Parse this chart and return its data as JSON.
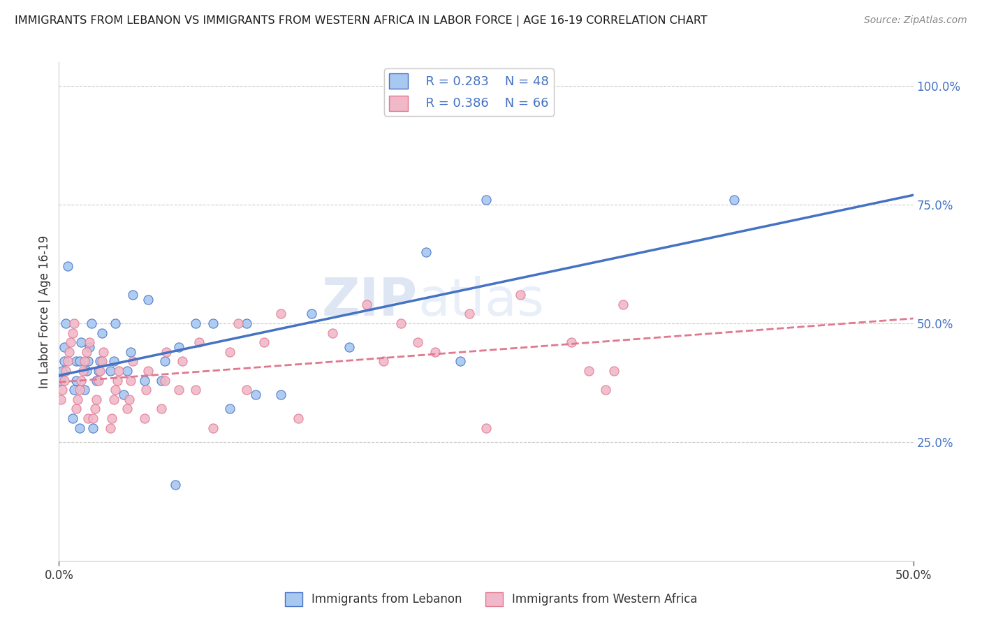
{
  "title": "IMMIGRANTS FROM LEBANON VS IMMIGRANTS FROM WESTERN AFRICA IN LABOR FORCE | AGE 16-19 CORRELATION CHART",
  "source": "Source: ZipAtlas.com",
  "ylabel": "In Labor Force | Age 16-19",
  "xmin": 0.0,
  "xmax": 0.5,
  "ymin": 0.0,
  "ymax": 1.05,
  "yticks": [
    0.25,
    0.5,
    0.75,
    1.0
  ],
  "ytick_labels": [
    "25.0%",
    "50.0%",
    "75.0%",
    "100.0%"
  ],
  "xtick_labels": [
    "0.0%",
    "50.0%"
  ],
  "watermark_zip": "ZIP",
  "watermark_atlas": "atlas",
  "legend_r1": "R = 0.283",
  "legend_n1": "N = 48",
  "legend_r2": "R = 0.386",
  "legend_n2": "N = 66",
  "color_lebanon": "#a8c8f0",
  "color_west_africa": "#f0b8c8",
  "color_line_lebanon": "#4472c4",
  "color_line_west_africa": "#e07890",
  "color_text_blue": "#4472c4",
  "color_text_dark": "#333333",
  "lebanon_x": [
    0.001,
    0.002,
    0.003,
    0.003,
    0.004,
    0.005,
    0.008,
    0.009,
    0.01,
    0.01,
    0.012,
    0.012,
    0.013,
    0.015,
    0.016,
    0.017,
    0.018,
    0.019,
    0.02,
    0.022,
    0.023,
    0.024,
    0.025,
    0.03,
    0.032,
    0.033,
    0.038,
    0.04,
    0.042,
    0.043,
    0.05,
    0.052,
    0.06,
    0.062,
    0.068,
    0.07,
    0.08,
    0.09,
    0.1,
    0.11,
    0.115,
    0.13,
    0.148,
    0.17,
    0.215,
    0.235,
    0.25,
    0.395
  ],
  "lebanon_y": [
    0.38,
    0.4,
    0.42,
    0.45,
    0.5,
    0.62,
    0.3,
    0.36,
    0.38,
    0.42,
    0.28,
    0.42,
    0.46,
    0.36,
    0.4,
    0.42,
    0.45,
    0.5,
    0.28,
    0.38,
    0.4,
    0.42,
    0.48,
    0.4,
    0.42,
    0.5,
    0.35,
    0.4,
    0.44,
    0.56,
    0.38,
    0.55,
    0.38,
    0.42,
    0.16,
    0.45,
    0.5,
    0.5,
    0.32,
    0.5,
    0.35,
    0.35,
    0.52,
    0.45,
    0.65,
    0.42,
    0.76,
    0.76
  ],
  "west_africa_x": [
    0.001,
    0.002,
    0.003,
    0.004,
    0.005,
    0.006,
    0.007,
    0.008,
    0.009,
    0.01,
    0.011,
    0.012,
    0.013,
    0.014,
    0.015,
    0.016,
    0.017,
    0.018,
    0.02,
    0.021,
    0.022,
    0.023,
    0.024,
    0.025,
    0.026,
    0.03,
    0.031,
    0.032,
    0.033,
    0.034,
    0.035,
    0.04,
    0.041,
    0.042,
    0.043,
    0.05,
    0.051,
    0.052,
    0.06,
    0.062,
    0.063,
    0.07,
    0.072,
    0.08,
    0.082,
    0.09,
    0.1,
    0.105,
    0.11,
    0.12,
    0.13,
    0.14,
    0.16,
    0.18,
    0.19,
    0.2,
    0.21,
    0.22,
    0.24,
    0.25,
    0.27,
    0.3,
    0.31,
    0.32,
    0.325,
    0.33
  ],
  "west_africa_y": [
    0.34,
    0.36,
    0.38,
    0.4,
    0.42,
    0.44,
    0.46,
    0.48,
    0.5,
    0.32,
    0.34,
    0.36,
    0.38,
    0.4,
    0.42,
    0.44,
    0.3,
    0.46,
    0.3,
    0.32,
    0.34,
    0.38,
    0.4,
    0.42,
    0.44,
    0.28,
    0.3,
    0.34,
    0.36,
    0.38,
    0.4,
    0.32,
    0.34,
    0.38,
    0.42,
    0.3,
    0.36,
    0.4,
    0.32,
    0.38,
    0.44,
    0.36,
    0.42,
    0.36,
    0.46,
    0.28,
    0.44,
    0.5,
    0.36,
    0.46,
    0.52,
    0.3,
    0.48,
    0.54,
    0.42,
    0.5,
    0.46,
    0.44,
    0.52,
    0.28,
    0.56,
    0.46,
    0.4,
    0.36,
    0.4,
    0.54
  ]
}
